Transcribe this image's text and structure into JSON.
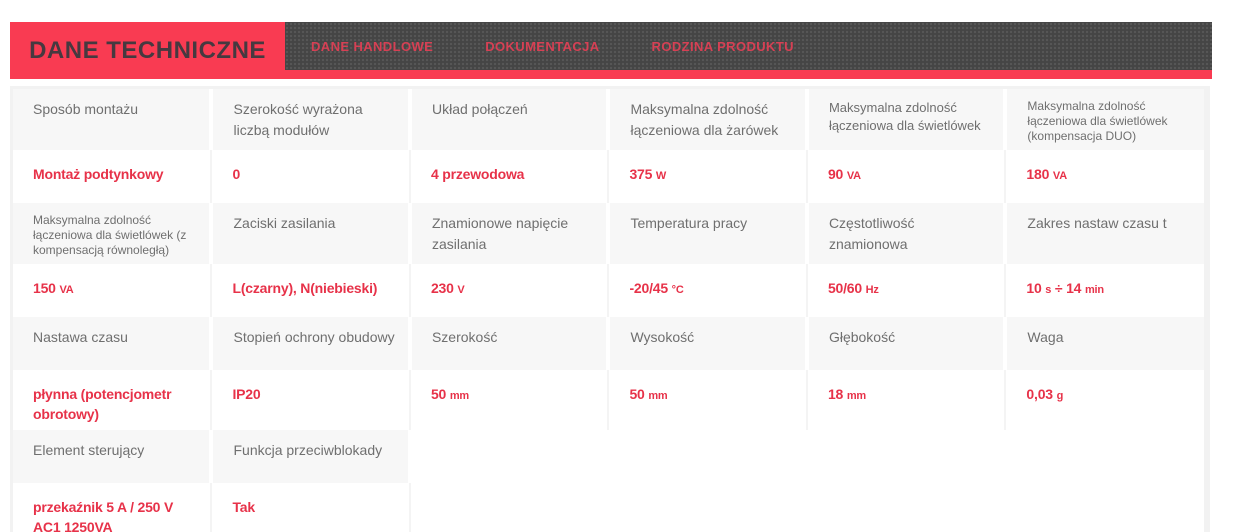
{
  "colors": {
    "accent_red": "#f93b52",
    "value_red": "#e73249",
    "active_tab_text": "#463940",
    "menu_bar_dark": "#454545",
    "menu_text_red": "#d64054",
    "label_gray": "#6f6f6f",
    "label_row_bg": "#f7f7f7",
    "table_border": "#f2f2f2"
  },
  "tabs": {
    "active_label": "DANE TECHNICZNE",
    "items": [
      "DANE HANDLOWE",
      "DOKUMENTACJA",
      "RODZINA PRODUKTU"
    ]
  },
  "table": {
    "groups": [
      {
        "labels": [
          "Sposób montażu",
          "Szerokość wyrażona liczbą modułów",
          "Układ połączeń",
          "Maksymalna zdolność łączeniowa dla żarówek",
          "Maksymalna zdolność łączeniowa dla świetlówek",
          "Maksymalna zdolność łączeniowa dla świetlówek (kompensacja DUO)"
        ],
        "values": [
          [
            [
              "Montaż podtynkowy",
              "n"
            ]
          ],
          [
            [
              "0",
              "n"
            ]
          ],
          [
            [
              "4 przewodowa",
              "n"
            ]
          ],
          [
            [
              "375 ",
              "n"
            ],
            [
              "W",
              "s"
            ]
          ],
          [
            [
              "90 ",
              "n"
            ],
            [
              "VA",
              "s"
            ]
          ],
          [
            [
              "180 ",
              "n"
            ],
            [
              "VA",
              "s"
            ]
          ]
        ]
      },
      {
        "labels": [
          "Maksymalna zdolność łączeniowa dla świetlówek (z kompensacją równoległą)",
          "Zaciski zasilania",
          "Znamionowe napięcie zasilania",
          "Temperatura pracy",
          "Częstotliwość znamionowa",
          "Zakres nastaw czasu t"
        ],
        "values": [
          [
            [
              "150 ",
              "n"
            ],
            [
              "VA",
              "s"
            ]
          ],
          [
            [
              "L(czarny), N(niebieski)",
              "n"
            ]
          ],
          [
            [
              "230 ",
              "n"
            ],
            [
              "V",
              "s"
            ]
          ],
          [
            [
              "-20/45 ",
              "n"
            ],
            [
              "°C",
              "s"
            ]
          ],
          [
            [
              "50/60 ",
              "n"
            ],
            [
              "Hz",
              "s"
            ]
          ],
          [
            [
              "10 ",
              "n"
            ],
            [
              "s",
              "s"
            ],
            [
              " ÷ 14 ",
              "n"
            ],
            [
              "min",
              "s"
            ]
          ]
        ]
      },
      {
        "labels": [
          "Nastawa czasu",
          "Stopień ochrony obudowy",
          "Szerokość",
          "Wysokość",
          "Głębokość",
          "Waga"
        ],
        "values": [
          [
            [
              "płynna (potencjometr obrotowy)",
              "n"
            ]
          ],
          [
            [
              "IP20",
              "n"
            ]
          ],
          [
            [
              "50 ",
              "n"
            ],
            [
              "mm",
              "s"
            ]
          ],
          [
            [
              "50 ",
              "n"
            ],
            [
              "mm",
              "s"
            ]
          ],
          [
            [
              "18 ",
              "n"
            ],
            [
              "mm",
              "s"
            ]
          ],
          [
            [
              "0,03 ",
              "n"
            ],
            [
              "g",
              "s"
            ]
          ]
        ]
      },
      {
        "labels": [
          "Element sterujący",
          "Funkcja przeciwblokady",
          "",
          "",
          "",
          ""
        ],
        "values": [
          [
            [
              "przekaźnik 5 A / 250 V AC1 1250VA",
              "n"
            ]
          ],
          [
            [
              "Tak",
              "n"
            ]
          ],
          [],
          [],
          [],
          []
        ]
      }
    ]
  }
}
